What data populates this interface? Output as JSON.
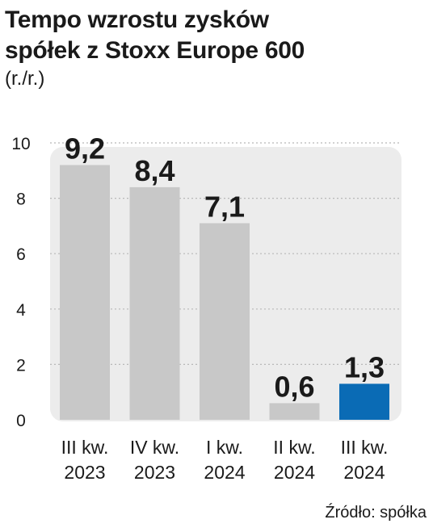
{
  "title_lines": [
    "Tempo wzrostu zysków",
    "spółek z Stoxx Europe 600"
  ],
  "subtitle": "(r./r.)",
  "source": "Źródło: spółka",
  "colors": {
    "bar_default": "#c8c8c8",
    "bar_highlight": "#0a6bb5",
    "plot_bg": "#ececec",
    "grid": "#b8b8b8",
    "text": "#1a1a1a"
  },
  "chart_data": {
    "type": "bar",
    "title": "Tempo wzrostu zysków spółek z Stoxx Europe 600",
    "subtitle": "(r./r.)",
    "xlabel": "",
    "ylabel": "",
    "ylim": [
      0,
      10
    ],
    "yticks": [
      0,
      2,
      4,
      6,
      8,
      10
    ],
    "grid": true,
    "categories": [
      [
        "III kw.",
        "2023"
      ],
      [
        "IV kw.",
        "2023"
      ],
      [
        "I kw.",
        "2024"
      ],
      [
        "II kw.",
        "2024"
      ],
      [
        "III kw.",
        "2024"
      ]
    ],
    "values": [
      9.2,
      8.4,
      7.1,
      0.6,
      1.3
    ],
    "value_labels": [
      "9,2",
      "8,4",
      "7,1",
      "0,6",
      "1,3"
    ],
    "highlight_index": 4
  }
}
